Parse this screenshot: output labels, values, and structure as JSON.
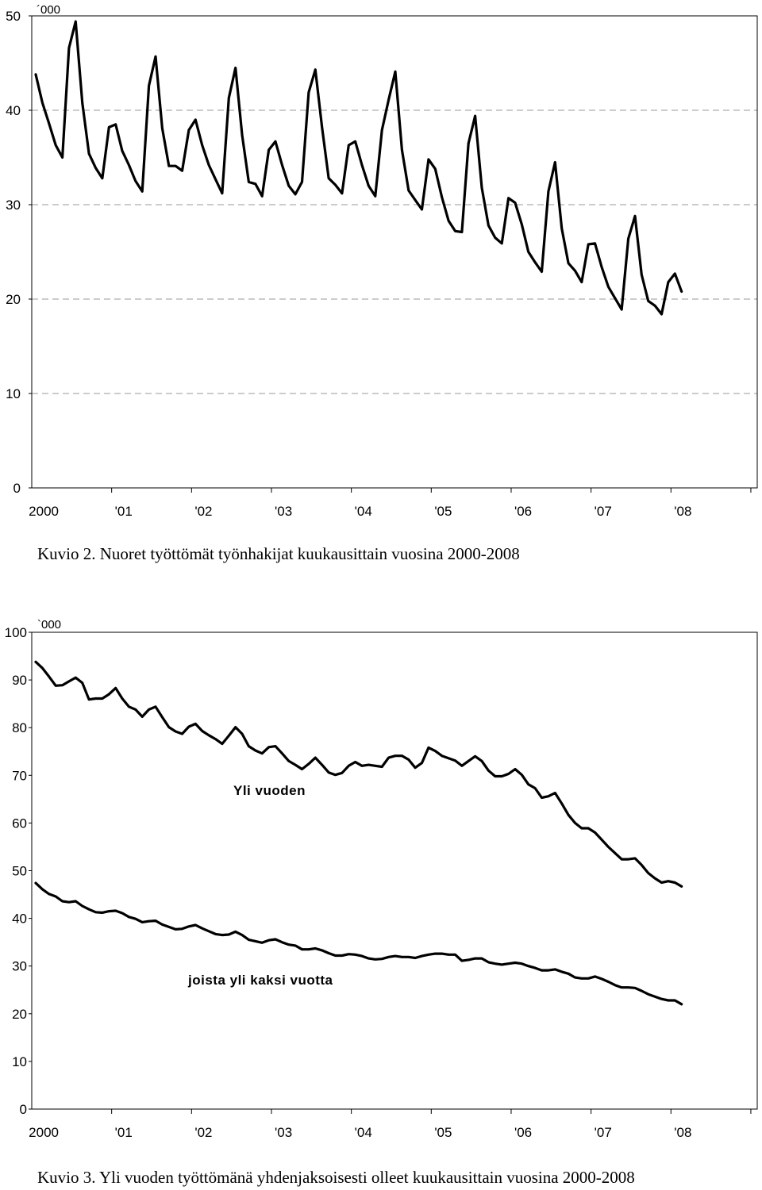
{
  "chart_data": [
    {
      "type": "line",
      "unit_label": "´000",
      "ylim": [
        0,
        50
      ],
      "yticks": [
        "0",
        "10",
        "20",
        "30",
        "40",
        "50"
      ],
      "xticks": [
        "2000",
        "'01",
        "'02",
        "'03",
        "'04",
        "'05",
        "'06",
        "'07",
        "'08"
      ],
      "x_start": "2000-01",
      "grid": "horizontal dashed",
      "caption": "Kuvio 2.  Nuoret työttömät työnhakijat kuukausittain vuosina 2000-2008",
      "series": [
        {
          "values": [
            43.8,
            40.8,
            38.6,
            36.3,
            35.0,
            46.6,
            49.4,
            40.8,
            35.4,
            33.9,
            32.8,
            38.2,
            38.5,
            35.7,
            34.2,
            32.5,
            31.4,
            42.6,
            45.7,
            38.1,
            34.1,
            34.1,
            33.6,
            37.9,
            39.0,
            36.3,
            34.2,
            32.7,
            31.2,
            41.3,
            44.5,
            37.4,
            32.4,
            32.2,
            30.9,
            35.8,
            36.7,
            34.2,
            32.0,
            31.1,
            32.4,
            41.9,
            44.3,
            38.2,
            32.8,
            32.1,
            31.2,
            36.3,
            36.7,
            34.2,
            32.0,
            30.9,
            37.9,
            41.1,
            44.1,
            35.8,
            31.5,
            30.5,
            29.5,
            34.8,
            33.8,
            30.8,
            28.3,
            27.2,
            27.1,
            36.5,
            39.4,
            31.8,
            27.8,
            26.5,
            25.9,
            30.7,
            30.2,
            27.9,
            25.0,
            23.9,
            22.9,
            31.4,
            34.5,
            27.5,
            23.8,
            23.0,
            21.8,
            25.8,
            25.9,
            23.4,
            21.3,
            20.1,
            18.9,
            26.4,
            28.8,
            22.6,
            19.8,
            19.3,
            18.4,
            21.8,
            22.7,
            20.8
          ]
        }
      ]
    },
    {
      "type": "line",
      "unit_label": "`000",
      "ylim": [
        0,
        100
      ],
      "yticks": [
        "0",
        "10",
        "20",
        "30",
        "40",
        "50",
        "60",
        "70",
        "80",
        "90",
        "100"
      ],
      "xticks": [
        "2000",
        "'01",
        "'02",
        "'03",
        "'04",
        "'05",
        "'06",
        "'07",
        "'08"
      ],
      "x_start": "2000-01",
      "grid": "none",
      "caption": "Kuvio 3.  Yli vuoden työttömänä yhdenjaksoisesti olleet kuukausittain vuosina 2000-2008",
      "annotations": [
        "Yli vuoden",
        "joista yli kaksi vuotta"
      ],
      "series": [
        {
          "label": "Yli vuoden",
          "values": [
            93.8,
            92.5,
            90.7,
            88.8,
            88.9,
            89.7,
            90.5,
            89.4,
            85.9,
            86.1,
            86.1,
            87.0,
            88.3,
            86.1,
            84.4,
            83.8,
            82.3,
            83.8,
            84.4,
            82.2,
            80.1,
            79.2,
            78.7,
            80.2,
            80.8,
            79.3,
            78.4,
            77.6,
            76.6,
            78.3,
            80.1,
            78.7,
            76.1,
            75.2,
            74.6,
            75.9,
            76.1,
            74.6,
            73.0,
            72.2,
            71.3,
            72.4,
            73.7,
            72.2,
            70.6,
            70.1,
            70.5,
            72.0,
            72.8,
            72.0,
            72.2,
            72.0,
            71.8,
            73.7,
            74.1,
            74.1,
            73.3,
            71.6,
            72.6,
            75.8,
            75.1,
            74.1,
            73.6,
            73.1,
            72.0,
            73.0,
            74.0,
            73.0,
            71.0,
            69.8,
            69.8,
            70.3,
            71.3,
            70.1,
            68.1,
            67.3,
            65.3,
            65.6,
            66.3,
            64.1,
            61.7,
            60.0,
            58.9,
            58.9,
            58.0,
            56.5,
            55.0,
            53.7,
            52.4,
            52.4,
            52.6,
            51.2,
            49.5,
            48.4,
            47.5,
            47.8,
            47.5,
            46.7
          ]
        },
        {
          "label": "joista yli kaksi vuotta",
          "values": [
            47.4,
            46.1,
            45.1,
            44.6,
            43.6,
            43.4,
            43.6,
            42.6,
            41.9,
            41.3,
            41.2,
            41.5,
            41.6,
            41.1,
            40.3,
            39.9,
            39.2,
            39.4,
            39.5,
            38.7,
            38.2,
            37.7,
            37.8,
            38.3,
            38.6,
            37.9,
            37.3,
            36.7,
            36.5,
            36.6,
            37.2,
            36.5,
            35.5,
            35.2,
            34.9,
            35.4,
            35.6,
            35.0,
            34.5,
            34.3,
            33.5,
            33.5,
            33.7,
            33.3,
            32.7,
            32.2,
            32.2,
            32.5,
            32.4,
            32.1,
            31.6,
            31.4,
            31.5,
            31.9,
            32.1,
            31.9,
            31.9,
            31.7,
            32.1,
            32.4,
            32.6,
            32.6,
            32.4,
            32.4,
            31.1,
            31.3,
            31.6,
            31.6,
            30.8,
            30.5,
            30.3,
            30.5,
            30.7,
            30.5,
            30.0,
            29.6,
            29.1,
            29.1,
            29.3,
            28.8,
            28.4,
            27.6,
            27.4,
            27.4,
            27.8,
            27.3,
            26.7,
            26.0,
            25.5,
            25.5,
            25.4,
            24.8,
            24.1,
            23.6,
            23.1,
            22.8,
            22.8,
            22.0
          ]
        }
      ]
    }
  ]
}
